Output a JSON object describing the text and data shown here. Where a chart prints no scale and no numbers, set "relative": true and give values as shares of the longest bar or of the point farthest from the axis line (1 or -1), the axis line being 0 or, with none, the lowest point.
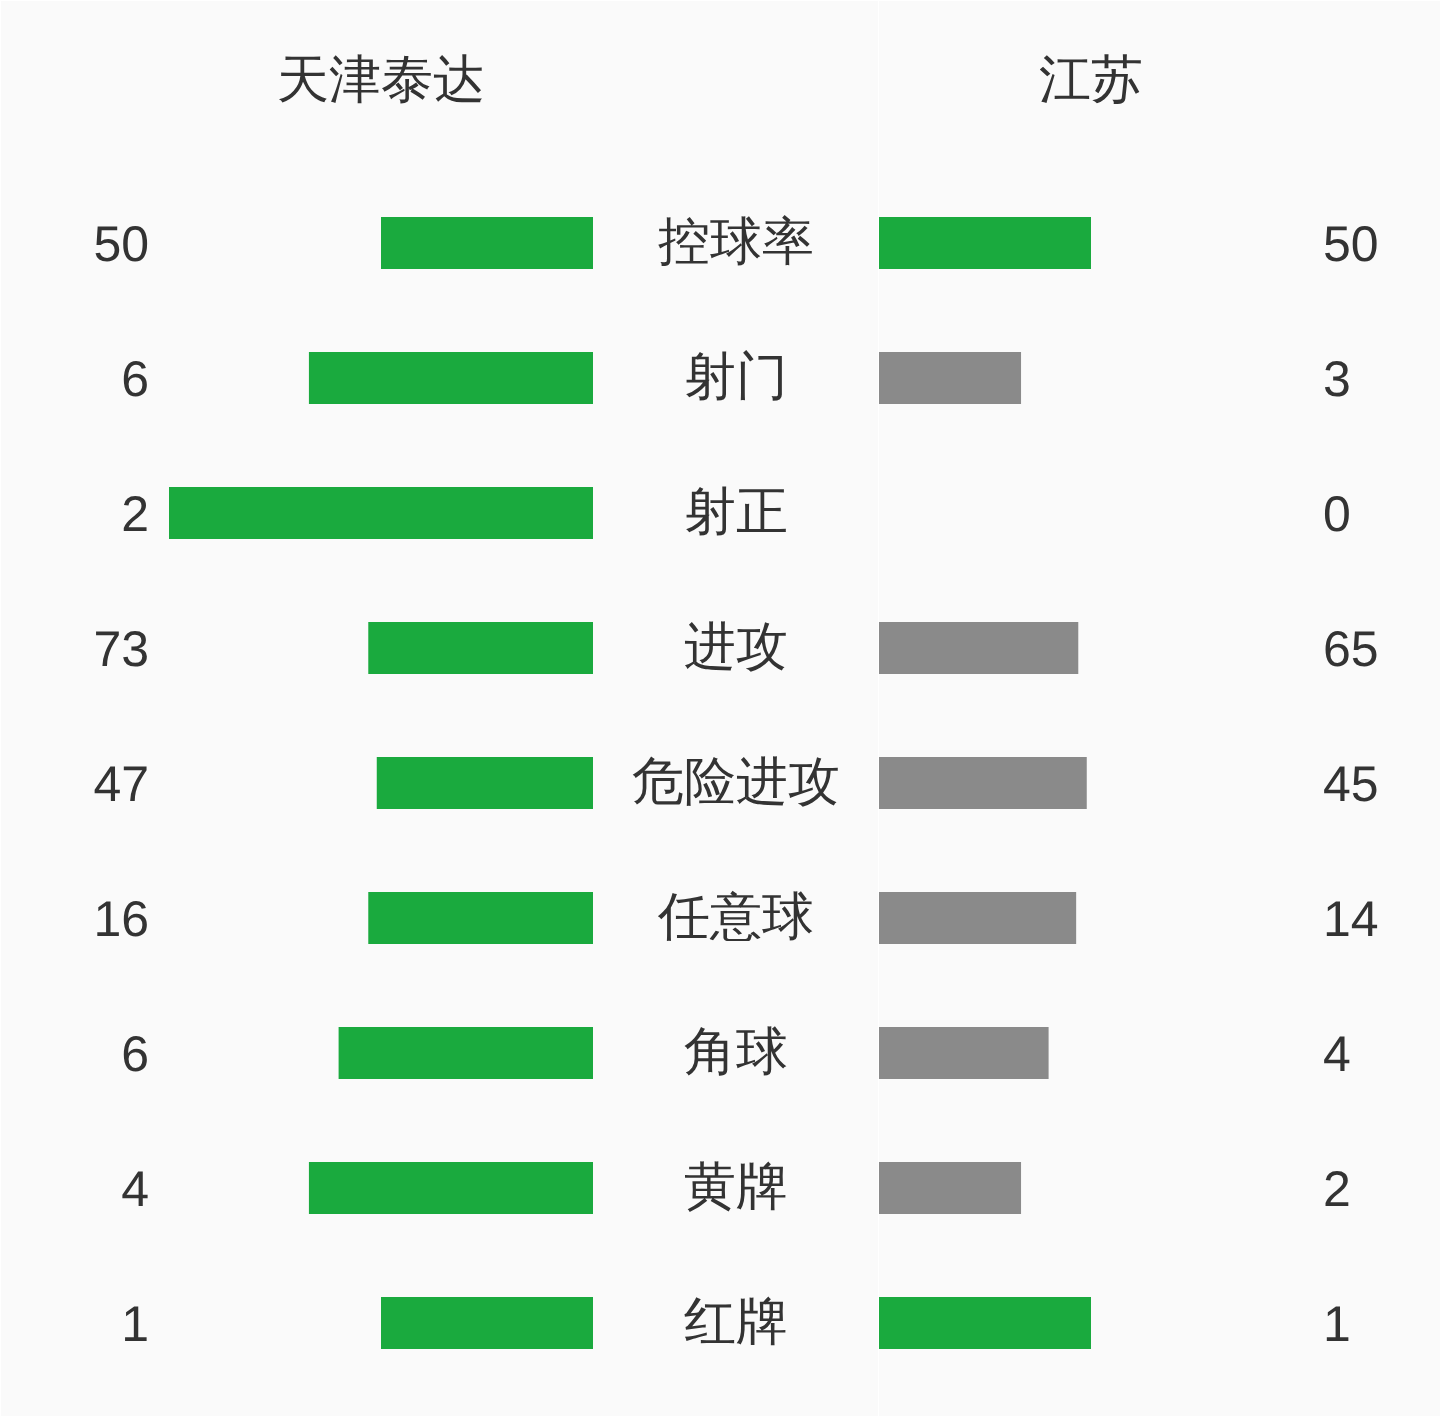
{
  "chart_data": [
    {
      "type": "bar",
      "orientation": "horizontal",
      "relative": true,
      "title": "天津泰达",
      "categories": [
        "控球率",
        "射门",
        "射正",
        "进攻",
        "危险进攻",
        "任意球",
        "角球",
        "黄牌",
        "红牌"
      ],
      "series": [
        {
          "colors": [
            "#1aaa3e",
            "#1aaa3e",
            "#1aaa3e",
            "#1aaa3e",
            "#1aaa3e",
            "#1aaa3e",
            "#1aaa3e",
            "#1aaa3e",
            "#1aaa3e"
          ],
          "values": [
            0.5,
            0.67,
            1,
            0.53,
            0.51,
            0.53,
            0.6,
            0.67,
            0.5
          ]
        }
      ],
      "annotations": [
        "50",
        "6",
        "2",
        "73",
        "47",
        "16",
        "6",
        "4",
        "1"
      ]
    },
    {
      "type": "bar",
      "orientation": "horizontal",
      "relative": true,
      "title": "江苏",
      "categories": [
        null,
        null,
        null,
        null,
        null,
        null,
        null,
        null,
        null
      ],
      "series": [
        {
          "colors": [
            "#1aaa3e",
            "#8a8a8a",
            "#8a8a8a",
            "#8a8a8a",
            "#8a8a8a",
            "#8a8a8a",
            "#8a8a8a",
            "#8a8a8a",
            "#1aaa3e"
          ],
          "values": [
            1,
            0.67,
            0,
            0.94,
            0.98,
            0.93,
            0.8,
            0.67,
            1
          ]
        }
      ],
      "annotations": [
        "50",
        "3",
        "0",
        "65",
        "45",
        "14",
        "4",
        "2",
        "1"
      ]
    }
  ]
}
